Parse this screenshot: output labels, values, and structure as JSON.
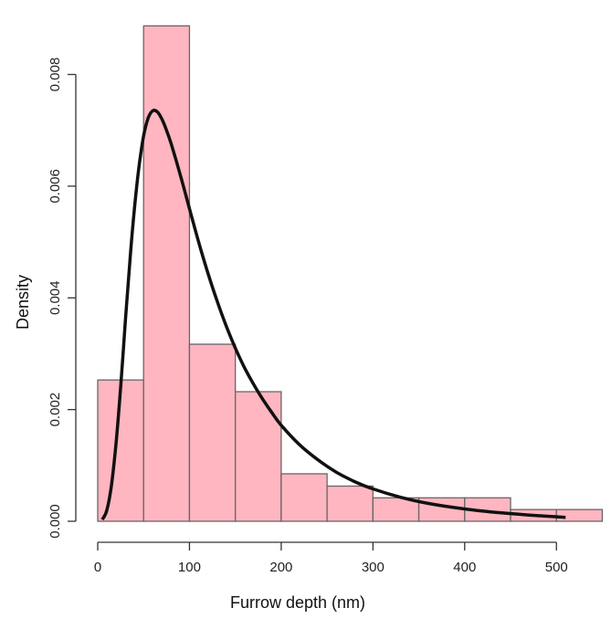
{
  "chart_data": {
    "type": "bar",
    "xlabel": "Furrow depth (nm)",
    "ylabel": "Density",
    "xlim": [
      0,
      550
    ],
    "ylim": [
      0,
      0.0088
    ],
    "x_ticks": [
      0,
      100,
      200,
      300,
      400,
      500
    ],
    "x_tick_labels": [
      "0",
      "100",
      "200",
      "300",
      "400",
      "500"
    ],
    "y_ticks": [
      0.0,
      0.002,
      0.004,
      0.006,
      0.008
    ],
    "y_tick_labels": [
      "0.000",
      "0.002",
      "0.004",
      "0.006",
      "0.008"
    ],
    "bins": [
      {
        "x0": 0,
        "x1": 50,
        "density": 0.00253
      },
      {
        "x0": 50,
        "x1": 100,
        "density": 0.00887
      },
      {
        "x0": 100,
        "x1": 150,
        "density": 0.00317
      },
      {
        "x0": 150,
        "x1": 200,
        "density": 0.00232
      },
      {
        "x0": 200,
        "x1": 250,
        "density": 0.00085
      },
      {
        "x0": 250,
        "x1": 300,
        "density": 0.00063
      },
      {
        "x0": 300,
        "x1": 350,
        "density": 0.00042
      },
      {
        "x0": 350,
        "x1": 400,
        "density": 0.00042
      },
      {
        "x0": 400,
        "x1": 450,
        "density": 0.00042
      },
      {
        "x0": 450,
        "x1": 500,
        "density": 0.00021
      },
      {
        "x0": 500,
        "x1": 550,
        "density": 0.00021
      }
    ],
    "density_curve": {
      "x": [
        5,
        10,
        15,
        20,
        25,
        30,
        35,
        40,
        45,
        50,
        55,
        60,
        65,
        70,
        75,
        80,
        90,
        100,
        110,
        120,
        130,
        140,
        150,
        160,
        170,
        180,
        190,
        200,
        220,
        240,
        260,
        280,
        300,
        330,
        360,
        400,
        440,
        480,
        510
      ],
      "y": [
        3e-05,
        0.0002,
        0.00065,
        0.0014,
        0.0024,
        0.00355,
        0.00465,
        0.0056,
        0.00635,
        0.0069,
        0.00722,
        0.00735,
        0.00733,
        0.0072,
        0.007,
        0.00676,
        0.0062,
        0.0056,
        0.005,
        0.00445,
        0.00395,
        0.0035,
        0.0031,
        0.00275,
        0.00245,
        0.00218,
        0.00194,
        0.00172,
        0.00137,
        0.0011,
        0.00088,
        0.00071,
        0.00058,
        0.00043,
        0.00032,
        0.00022,
        0.00015,
        0.0001,
        7e-05
      ]
    },
    "colors": {
      "bar_fill": "#ffb6c1",
      "bar_stroke": "#666666",
      "curve": "#111111",
      "axis": "#333333"
    },
    "grid": false,
    "legend": "none"
  }
}
